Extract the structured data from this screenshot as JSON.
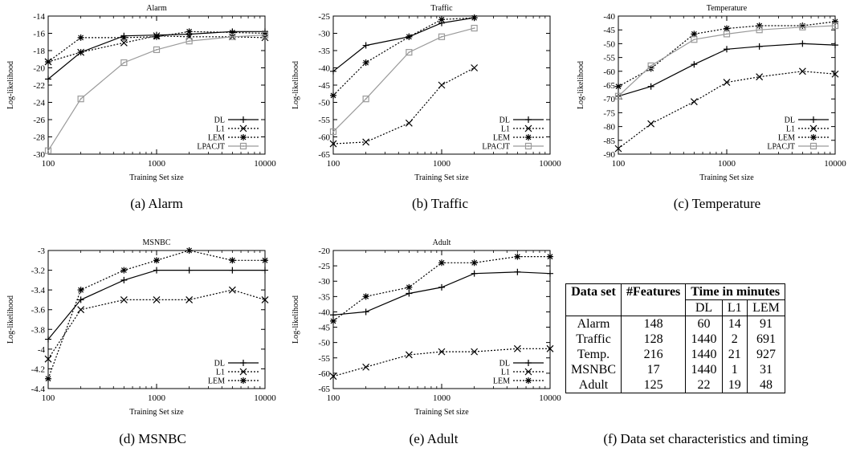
{
  "chart_data": [
    {
      "id": "alarm",
      "type": "line",
      "title": "Alarm",
      "xlabel": "Training Set size",
      "ylabel": "Log-likelihood",
      "xscale": "log",
      "xlim": [
        100,
        10000
      ],
      "ylim": [
        -30,
        -14
      ],
      "xticks": [
        100,
        1000,
        10000
      ],
      "yticks": [
        -30,
        -28,
        -26,
        -24,
        -22,
        -20,
        -18,
        -16,
        -14
      ],
      "legend": "bottom-right",
      "caption": "(a) Alarm",
      "series": [
        {
          "name": "DL",
          "marker": "plus",
          "dash": "solid",
          "color": "#000000",
          "x": [
            100,
            200,
            500,
            1000,
            2000,
            5000,
            10000
          ],
          "y": [
            -21.3,
            -18.2,
            -16.3,
            -16.2,
            -16.1,
            -15.8,
            -15.8
          ]
        },
        {
          "name": "L1",
          "marker": "x",
          "dash": "dotted",
          "color": "#000000",
          "x": [
            100,
            200,
            500,
            1000,
            2000,
            5000,
            10000
          ],
          "y": [
            -19.3,
            -18.2,
            -17.1,
            -16.3,
            -16.4,
            -16.4,
            -16.5
          ]
        },
        {
          "name": "LEM",
          "marker": "star",
          "dash": "dotted",
          "color": "#000000",
          "x": [
            100,
            200,
            500,
            1000,
            2000,
            5000,
            10000
          ],
          "y": [
            -19.3,
            -16.5,
            -16.5,
            -16.4,
            -15.8,
            -15.9,
            -16.0
          ]
        },
        {
          "name": "LPACJT",
          "marker": "square",
          "dash": "solid",
          "color": "#9a9a9a",
          "x": [
            100,
            200,
            500,
            1000,
            2000,
            5000,
            10000
          ],
          "y": [
            -29.6,
            -23.6,
            -19.4,
            -17.9,
            -16.9,
            -16.4,
            -16.2
          ]
        }
      ]
    },
    {
      "id": "traffic",
      "type": "line",
      "title": "Traffic",
      "xlabel": "Training Set size",
      "ylabel": "Log-likelihood",
      "xscale": "log",
      "xlim": [
        100,
        10000
      ],
      "ylim": [
        -65,
        -25
      ],
      "xticks": [
        100,
        1000,
        10000
      ],
      "yticks": [
        -65,
        -60,
        -55,
        -50,
        -45,
        -40,
        -35,
        -30,
        -25
      ],
      "legend": "bottom-right",
      "caption": "(b) Traffic",
      "series": [
        {
          "name": "DL",
          "marker": "plus",
          "dash": "solid",
          "color": "#000000",
          "x": [
            100,
            200,
            500,
            1000,
            2000
          ],
          "y": [
            -41,
            -33.5,
            -31,
            -27,
            -25.5
          ]
        },
        {
          "name": "L1",
          "marker": "x",
          "dash": "dotted",
          "color": "#000000",
          "x": [
            100,
            200,
            500,
            1000,
            2000
          ],
          "y": [
            -62,
            -61.5,
            -56,
            -45,
            -40
          ]
        },
        {
          "name": "LEM",
          "marker": "star",
          "dash": "dotted",
          "color": "#000000",
          "x": [
            100,
            200,
            500,
            1000,
            2000
          ],
          "y": [
            -48,
            -38.5,
            -31,
            -26,
            -25.5
          ]
        },
        {
          "name": "LPACJT",
          "marker": "square",
          "dash": "solid",
          "color": "#9a9a9a",
          "x": [
            100,
            200,
            500,
            1000,
            2000
          ],
          "y": [
            -58.5,
            -49,
            -35.5,
            -31,
            -28.5
          ]
        }
      ]
    },
    {
      "id": "temperature",
      "type": "line",
      "title": "Temperature",
      "xlabel": "Training Set size",
      "ylabel": "Log-likelihood",
      "xscale": "log",
      "xlim": [
        100,
        10000
      ],
      "ylim": [
        -90,
        -40
      ],
      "xticks": [
        100,
        1000,
        10000
      ],
      "yticks": [
        -90,
        -85,
        -80,
        -75,
        -70,
        -65,
        -60,
        -55,
        -50,
        -45,
        -40
      ],
      "legend": "bottom-right",
      "caption": "(c) Temperature",
      "series": [
        {
          "name": "DL",
          "marker": "plus",
          "dash": "solid",
          "color": "#000000",
          "x": [
            100,
            200,
            500,
            1000,
            2000,
            5000,
            10000
          ],
          "y": [
            -69,
            -65.5,
            -57.5,
            -52,
            -51,
            -50,
            -50.5
          ]
        },
        {
          "name": "L1",
          "marker": "x",
          "dash": "dotted",
          "color": "#000000",
          "x": [
            100,
            200,
            500,
            1000,
            2000,
            5000,
            10000
          ],
          "y": [
            -88,
            -79,
            -71,
            -64,
            -62,
            -60,
            -61
          ]
        },
        {
          "name": "LEM",
          "marker": "star",
          "dash": "dotted",
          "color": "#000000",
          "x": [
            100,
            200,
            500,
            1000,
            2000,
            5000,
            10000
          ],
          "y": [
            -65.5,
            -59,
            -46.5,
            -44.5,
            -43.5,
            -43.5,
            -42
          ]
        },
        {
          "name": "LPACJT",
          "marker": "square",
          "dash": "solid",
          "color": "#9a9a9a",
          "x": [
            100,
            200,
            500,
            1000,
            2000,
            5000,
            10000
          ],
          "y": [
            -69,
            -58,
            -48.5,
            -46.5,
            -45,
            -44,
            -43.5
          ]
        }
      ]
    },
    {
      "id": "msnbc",
      "type": "line",
      "title": "MSNBC",
      "xlabel": "Training Set size",
      "ylabel": "Log-likelihood",
      "xscale": "log",
      "xlim": [
        100,
        10000
      ],
      "ylim": [
        -4.4,
        -3
      ],
      "xticks": [
        100,
        1000,
        10000
      ],
      "yticks": [
        -4.4,
        -4.2,
        -4,
        -3.8,
        -3.6,
        -3.4,
        -3.2,
        -3
      ],
      "legend": "bottom-right",
      "caption": "(d) MSNBC",
      "series": [
        {
          "name": "DL",
          "marker": "plus",
          "dash": "solid",
          "color": "#000000",
          "x": [
            100,
            200,
            500,
            1000,
            2000,
            5000,
            10000
          ],
          "y": [
            -3.9,
            -3.5,
            -3.3,
            -3.2,
            -3.2,
            -3.2,
            -3.2
          ]
        },
        {
          "name": "L1",
          "marker": "x",
          "dash": "dotted",
          "color": "#000000",
          "x": [
            100,
            200,
            500,
            1000,
            2000,
            5000,
            10000
          ],
          "y": [
            -4.1,
            -3.6,
            -3.5,
            -3.5,
            -3.5,
            -3.4,
            -3.5
          ]
        },
        {
          "name": "LEM",
          "marker": "star",
          "dash": "dotted",
          "color": "#000000",
          "x": [
            100,
            200,
            500,
            1000,
            2000,
            5000,
            10000
          ],
          "y": [
            -4.3,
            -3.4,
            -3.2,
            -3.1,
            -3.0,
            -3.1,
            -3.1
          ]
        }
      ]
    },
    {
      "id": "adult",
      "type": "line",
      "title": "Adult",
      "xlabel": "Training Set size",
      "ylabel": "Log-likelihood",
      "xscale": "log",
      "xlim": [
        100,
        10000
      ],
      "ylim": [
        -65,
        -20
      ],
      "xticks": [
        100,
        1000,
        10000
      ],
      "yticks": [
        -65,
        -60,
        -55,
        -50,
        -45,
        -40,
        -35,
        -30,
        -25,
        -20
      ],
      "legend": "bottom-right",
      "caption": "(e) Adult",
      "series": [
        {
          "name": "DL",
          "marker": "plus",
          "dash": "solid",
          "color": "#000000",
          "x": [
            100,
            200,
            500,
            1000,
            2000,
            5000,
            10000
          ],
          "y": [
            -41,
            -40,
            -34,
            -32,
            -27.5,
            -27,
            -27.5
          ]
        },
        {
          "name": "L1",
          "marker": "x",
          "dash": "dotted",
          "color": "#000000",
          "x": [
            100,
            200,
            500,
            1000,
            2000,
            5000,
            10000
          ],
          "y": [
            -61,
            -58,
            -54,
            -53,
            -53,
            -52,
            -52
          ]
        },
        {
          "name": "LEM",
          "marker": "star",
          "dash": "dotted",
          "color": "#000000",
          "x": [
            100,
            200,
            500,
            1000,
            2000,
            5000,
            10000
          ],
          "y": [
            -43,
            -35,
            -32,
            -24,
            -24,
            -22,
            -22
          ]
        }
      ]
    }
  ],
  "table": {
    "caption": "(f) Data set characteristics and timing",
    "header": {
      "dataset": "Data set",
      "features": "#Features",
      "time": "Time in minutes"
    },
    "subheader": [
      "DL",
      "L1",
      "LEM"
    ],
    "rows": [
      {
        "name": "Alarm",
        "features": "148",
        "dl": "60",
        "l1": "14",
        "lem": "91"
      },
      {
        "name": "Traffic",
        "features": "128",
        "dl": "1440",
        "l1": "2",
        "lem": "691"
      },
      {
        "name": "Temp.",
        "features": "216",
        "dl": "1440",
        "l1": "21",
        "lem": "927"
      },
      {
        "name": "MSNBC",
        "features": "17",
        "dl": "1440",
        "l1": "1",
        "lem": "31"
      },
      {
        "name": "Adult",
        "features": "125",
        "dl": "22",
        "l1": "19",
        "lem": "48"
      }
    ]
  }
}
